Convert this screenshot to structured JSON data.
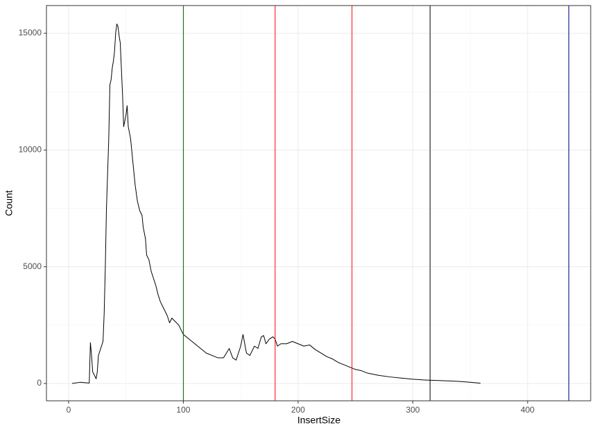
{
  "chart_data": {
    "type": "line",
    "x_label": "InsertSize",
    "y_label": "Count",
    "x": [
      3,
      10,
      15,
      18,
      19,
      20,
      21,
      23,
      24,
      25,
      26,
      28,
      30,
      31,
      32,
      33,
      35,
      36,
      37,
      38,
      39,
      40,
      41,
      42,
      43,
      44,
      45,
      46,
      47,
      48,
      50,
      51,
      52,
      54,
      56,
      58,
      60,
      62,
      64,
      65,
      67,
      68,
      70,
      72,
      74,
      76,
      78,
      80,
      82,
      84,
      86,
      88,
      90,
      92,
      96,
      100,
      105,
      110,
      115,
      120,
      125,
      130,
      135,
      140,
      143,
      146,
      150,
      152,
      155,
      158,
      162,
      165,
      168,
      170,
      172,
      175,
      178,
      180,
      182,
      185,
      190,
      195,
      200,
      205,
      210,
      215,
      220,
      225,
      230,
      235,
      240,
      245,
      250,
      255,
      260,
      270,
      280,
      290,
      300,
      310,
      320,
      330,
      340,
      350,
      359
    ],
    "series": [
      {
        "color": "#000000",
        "values": [
          0,
          50,
          30,
          20,
          1750,
          1200,
          500,
          300,
          200,
          500,
          1200,
          1500,
          1800,
          3000,
          5000,
          7500,
          10500,
          12800,
          13000,
          13500,
          13800,
          14200,
          15000,
          15400,
          15300,
          14900,
          14600,
          13500,
          12400,
          11000,
          11500,
          11900,
          11000,
          10500,
          9500,
          8500,
          7800,
          7400,
          7200,
          6700,
          6200,
          5500,
          5300,
          4800,
          4500,
          4200,
          3800,
          3500,
          3300,
          3100,
          2900,
          2600,
          2800,
          2700,
          2500,
          2100,
          1900,
          1700,
          1500,
          1300,
          1200,
          1100,
          1100,
          1500,
          1100,
          1000,
          1600,
          2100,
          1300,
          1200,
          1600,
          1500,
          2000,
          2050,
          1700,
          1900,
          2000,
          1900,
          1600,
          1700,
          1700,
          1800,
          1700,
          1600,
          1650,
          1450,
          1300,
          1150,
          1050,
          900,
          800,
          700,
          600,
          550,
          450,
          350,
          280,
          230,
          180,
          150,
          130,
          110,
          90,
          50,
          10
        ]
      }
    ],
    "vlines": [
      {
        "value": 100,
        "color": "#006400"
      },
      {
        "value": 180,
        "color": "#ff0000"
      },
      {
        "value": 247,
        "color": "#ff0000"
      },
      {
        "value": 315,
        "color": "#000000"
      },
      {
        "value": 436,
        "color": "#00008b"
      }
    ],
    "xlim": [
      -19.3,
      455
    ],
    "ylim": [
      -743,
      16190
    ],
    "xticks": [
      0,
      100,
      200,
      300,
      400
    ],
    "yticks": [
      0,
      5000,
      10000,
      15000
    ],
    "grid": true
  }
}
